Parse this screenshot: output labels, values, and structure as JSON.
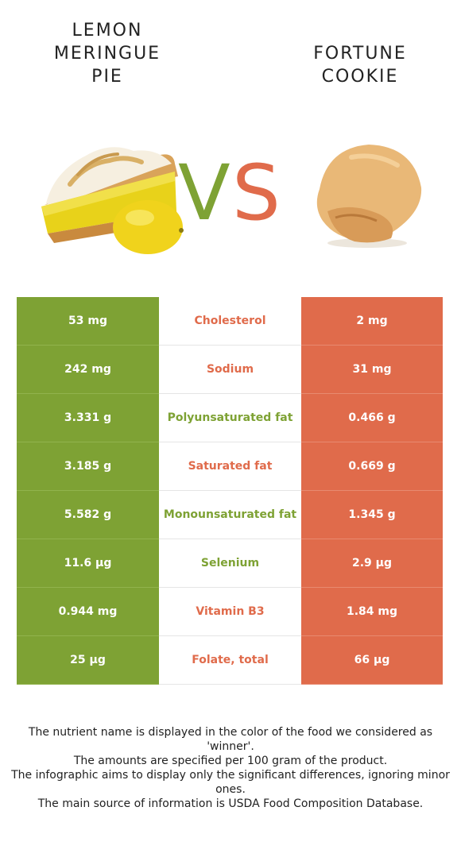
{
  "left_food": {
    "title": "LEMON\nMERINGUE\nPIE",
    "color": "#7ea234",
    "image_icon": "lemon-meringue-pie-image"
  },
  "right_food": {
    "title": "FORTUNE\nCOOKIE",
    "color": "#e06b4b",
    "image_icon": "fortune-cookie-image"
  },
  "vs": {
    "v": "V",
    "s": "S"
  },
  "rows": [
    {
      "left": "53 mg",
      "nutrient": "Cholesterol",
      "right": "2 mg",
      "winner": "right"
    },
    {
      "left": "242 mg",
      "nutrient": "Sodium",
      "right": "31 mg",
      "winner": "right"
    },
    {
      "left": "3.331 g",
      "nutrient": "Polyunsaturated fat",
      "right": "0.466 g",
      "winner": "left"
    },
    {
      "left": "3.185 g",
      "nutrient": "Saturated fat",
      "right": "0.669 g",
      "winner": "right"
    },
    {
      "left": "5.582 g",
      "nutrient": "Monounsaturated fat",
      "right": "1.345 g",
      "winner": "left"
    },
    {
      "left": "11.6 µg",
      "nutrient": "Selenium",
      "right": "2.9 µg",
      "winner": "left"
    },
    {
      "left": "0.944 mg",
      "nutrient": "Vitamin B3",
      "right": "1.84 mg",
      "winner": "right"
    },
    {
      "left": "25 µg",
      "nutrient": "Folate, total",
      "right": "66 µg",
      "winner": "right"
    }
  ],
  "footer": [
    "The nutrient name is displayed in the color of the food we considered as 'winner'.",
    "The amounts are specified per 100 gram of the product.",
    "The infographic aims to display only the significant differences, ignoring minor ones.",
    "The main source of information is USDA Food Composition Database."
  ]
}
